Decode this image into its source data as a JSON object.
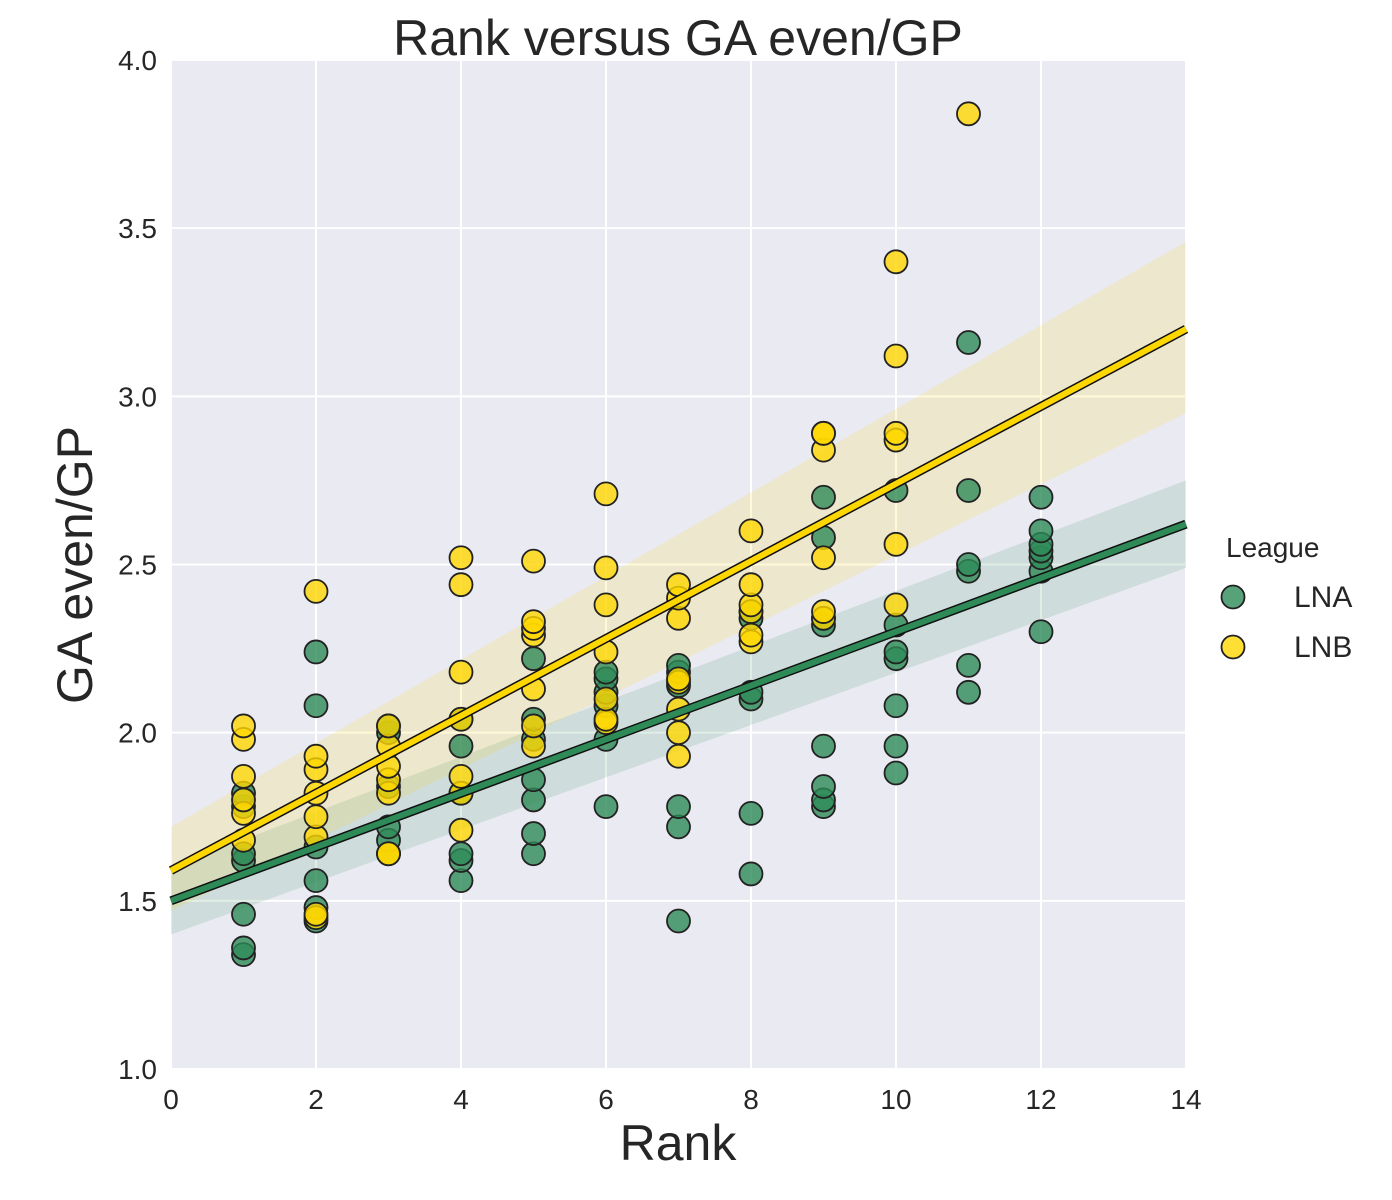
{
  "chart_data": {
    "type": "scatter",
    "title": "Rank versus GA even/GP",
    "xlabel": "Rank",
    "ylabel": "GA even/GP",
    "xlim": [
      0,
      14
    ],
    "ylim": [
      1.0,
      4.0
    ],
    "xticks": [
      "0",
      "2",
      "4",
      "6",
      "8",
      "10",
      "12",
      "14"
    ],
    "yticks": [
      "1.0",
      "1.5",
      "2.0",
      "2.5",
      "3.0",
      "3.5",
      "4.0"
    ],
    "grid": true,
    "legend": {
      "title": "League",
      "position": "right"
    },
    "series": [
      {
        "name": "LNA",
        "color": "#2e8b57",
        "points": [
          [
            1,
            1.34
          ],
          [
            1,
            1.36
          ],
          [
            1,
            1.46
          ],
          [
            1,
            1.62
          ],
          [
            1,
            1.64
          ],
          [
            1,
            1.78
          ],
          [
            1,
            1.82
          ],
          [
            2,
            1.44
          ],
          [
            2,
            1.48
          ],
          [
            2,
            1.56
          ],
          [
            2,
            1.66
          ],
          [
            2,
            2.08
          ],
          [
            2,
            2.24
          ],
          [
            3,
            1.64
          ],
          [
            3,
            1.68
          ],
          [
            3,
            1.72
          ],
          [
            3,
            1.84
          ],
          [
            3,
            2.0
          ],
          [
            3,
            2.02
          ],
          [
            4,
            1.56
          ],
          [
            4,
            1.62
          ],
          [
            4,
            1.64
          ],
          [
            4,
            1.82
          ],
          [
            4,
            1.96
          ],
          [
            4,
            2.04
          ],
          [
            5,
            1.64
          ],
          [
            5,
            1.7
          ],
          [
            5,
            1.8
          ],
          [
            5,
            1.86
          ],
          [
            5,
            1.98
          ],
          [
            5,
            2.04
          ],
          [
            5,
            2.22
          ],
          [
            6,
            1.78
          ],
          [
            6,
            1.98
          ],
          [
            6,
            2.08
          ],
          [
            6,
            2.12
          ],
          [
            6,
            2.16
          ],
          [
            6,
            2.18
          ],
          [
            7,
            1.44
          ],
          [
            7,
            1.72
          ],
          [
            7,
            1.78
          ],
          [
            7,
            2.14
          ],
          [
            7,
            2.18
          ],
          [
            7,
            2.2
          ],
          [
            8,
            1.58
          ],
          [
            8,
            1.76
          ],
          [
            8,
            2.1
          ],
          [
            8,
            2.12
          ],
          [
            8,
            2.34
          ],
          [
            8,
            2.36
          ],
          [
            9,
            1.78
          ],
          [
            9,
            1.8
          ],
          [
            9,
            1.84
          ],
          [
            9,
            1.96
          ],
          [
            9,
            2.32
          ],
          [
            9,
            2.34
          ],
          [
            9,
            2.58
          ],
          [
            9,
            2.7
          ],
          [
            10,
            1.88
          ],
          [
            10,
            1.96
          ],
          [
            10,
            2.08
          ],
          [
            10,
            2.22
          ],
          [
            10,
            2.24
          ],
          [
            10,
            2.32
          ],
          [
            10,
            2.72
          ],
          [
            11,
            2.12
          ],
          [
            11,
            2.2
          ],
          [
            11,
            2.48
          ],
          [
            11,
            2.5
          ],
          [
            11,
            2.72
          ],
          [
            11,
            3.16
          ],
          [
            12,
            2.3
          ],
          [
            12,
            2.48
          ],
          [
            12,
            2.52
          ],
          [
            12,
            2.54
          ],
          [
            12,
            2.56
          ],
          [
            12,
            2.6
          ],
          [
            12,
            2.7
          ]
        ],
        "fit": {
          "y_at_x0": 1.5,
          "y_at_x14": 2.62,
          "ci_low_x0": 1.4,
          "ci_high_x0": 1.6,
          "ci_low_x14": 2.49,
          "ci_high_x14": 2.75
        }
      },
      {
        "name": "LNB",
        "color": "#ffd700",
        "points": [
          [
            1,
            1.68
          ],
          [
            1,
            1.76
          ],
          [
            1,
            1.8
          ],
          [
            1,
            1.87
          ],
          [
            1,
            1.98
          ],
          [
            1,
            2.02
          ],
          [
            2,
            1.45
          ],
          [
            2,
            1.46
          ],
          [
            2,
            1.69
          ],
          [
            2,
            1.75
          ],
          [
            2,
            1.82
          ],
          [
            2,
            1.89
          ],
          [
            2,
            1.93
          ],
          [
            2,
            2.42
          ],
          [
            3,
            1.64
          ],
          [
            3,
            1.64
          ],
          [
            3,
            1.82
          ],
          [
            3,
            1.86
          ],
          [
            3,
            1.9
          ],
          [
            3,
            1.96
          ],
          [
            3,
            2.02
          ],
          [
            4,
            1.71
          ],
          [
            4,
            1.82
          ],
          [
            4,
            1.87
          ],
          [
            4,
            2.04
          ],
          [
            4,
            2.18
          ],
          [
            4,
            2.44
          ],
          [
            4,
            2.52
          ],
          [
            5,
            1.96
          ],
          [
            5,
            2.02
          ],
          [
            5,
            2.13
          ],
          [
            5,
            2.29
          ],
          [
            5,
            2.31
          ],
          [
            5,
            2.33
          ],
          [
            5,
            2.51
          ],
          [
            6,
            2.03
          ],
          [
            6,
            2.04
          ],
          [
            6,
            2.1
          ],
          [
            6,
            2.24
          ],
          [
            6,
            2.38
          ],
          [
            6,
            2.49
          ],
          [
            6,
            2.71
          ],
          [
            7,
            1.93
          ],
          [
            7,
            2.0
          ],
          [
            7,
            2.07
          ],
          [
            7,
            2.15
          ],
          [
            7,
            2.16
          ],
          [
            7,
            2.34
          ],
          [
            7,
            2.4
          ],
          [
            7,
            2.44
          ],
          [
            8,
            2.27
          ],
          [
            8,
            2.29
          ],
          [
            8,
            2.36
          ],
          [
            8,
            2.38
          ],
          [
            8,
            2.44
          ],
          [
            8,
            2.6
          ],
          [
            9,
            2.34
          ],
          [
            9,
            2.36
          ],
          [
            9,
            2.52
          ],
          [
            9,
            2.84
          ],
          [
            9,
            2.89
          ],
          [
            9,
            2.89
          ],
          [
            10,
            2.38
          ],
          [
            10,
            2.56
          ],
          [
            10,
            2.87
          ],
          [
            10,
            2.89
          ],
          [
            10,
            3.12
          ],
          [
            10,
            3.4
          ],
          [
            11,
            3.84
          ]
        ],
        "fit": {
          "y_at_x0": 1.59,
          "y_at_x14": 3.2,
          "ci_low_x0": 1.47,
          "ci_high_x0": 1.72,
          "ci_low_x14": 2.95,
          "ci_high_x14": 3.46
        }
      }
    ]
  }
}
